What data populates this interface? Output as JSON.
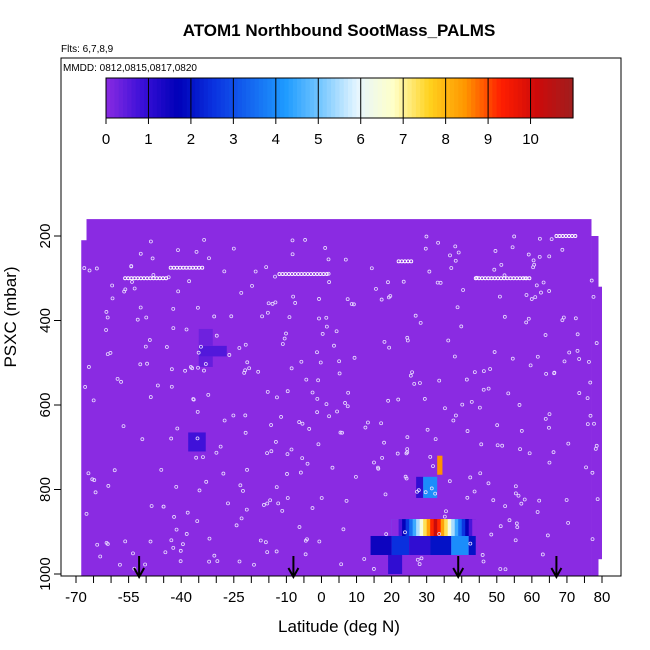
{
  "chart_data": {
    "type": "heatmap",
    "title": "ATOM1 Northbound SootMass_PALMS",
    "flights_label": "Flts: 6,7,8,9",
    "dates_label": "MMDD: 0812,0815,0817,0820",
    "xlabel": "Latitude (deg N)",
    "ylabel": "PSXC (mbar)",
    "xlim": [
      -70,
      80
    ],
    "ylim": [
      1000,
      100
    ],
    "x_ticks": [
      -70,
      -55,
      -40,
      -25,
      -10,
      0,
      10,
      20,
      30,
      40,
      50,
      60,
      70,
      80
    ],
    "x_tick_labels": [
      "-70",
      "-55",
      "-40",
      "-25",
      "-10",
      "0",
      "10",
      "20",
      "30",
      "40",
      "50",
      "60",
      "70",
      "80"
    ],
    "y_ticks": [
      200,
      400,
      600,
      800,
      1000
    ],
    "y_tick_labels": [
      "200",
      "400",
      "600",
      "800",
      "1000"
    ],
    "colorbar": {
      "ticks": [
        0,
        1,
        2,
        3,
        4,
        5,
        6,
        7,
        8,
        9,
        10
      ],
      "tick_labels": [
        "0",
        "1",
        "2",
        "3",
        "4",
        "5",
        "6",
        "7",
        "8",
        "9",
        "10"
      ],
      "range": [
        0,
        11
      ],
      "colors": [
        "#8a2be2",
        "#3b10d8",
        "#0000b8",
        "#0a32e0",
        "#1466f0",
        "#1e9bff",
        "#78c8ff",
        "#e6f6ff",
        "#ffffc8",
        "#ffd21e",
        "#ff9600",
        "#ff1e00",
        "#cd0a0a",
        "#a01e1e"
      ]
    },
    "background_color": "#8a2be2",
    "cells": [
      {
        "x0": 20,
        "x1": 25,
        "y0": 870,
        "y1": 910,
        "value": 4.5
      },
      {
        "x0": 25,
        "x1": 28,
        "y0": 870,
        "y1": 910,
        "value": 6.5
      },
      {
        "x0": 28,
        "x1": 31,
        "y0": 870,
        "y1": 910,
        "value": 8.5
      },
      {
        "x0": 31,
        "x1": 34,
        "y0": 870,
        "y1": 910,
        "value": 10.0
      },
      {
        "x0": 34,
        "x1": 37,
        "y0": 870,
        "y1": 910,
        "value": 7.5
      },
      {
        "x0": 37,
        "x1": 41,
        "y0": 870,
        "y1": 910,
        "value": 3.5
      },
      {
        "x0": 41,
        "x1": 44,
        "y0": 870,
        "y1": 910,
        "value": 1.5
      },
      {
        "x0": 14,
        "x1": 20,
        "y0": 910,
        "y1": 955,
        "value": 1.5
      },
      {
        "x0": 20,
        "x1": 25,
        "y0": 910,
        "y1": 955,
        "value": 2.5
      },
      {
        "x0": 25,
        "x1": 31,
        "y0": 910,
        "y1": 955,
        "value": 1.0
      },
      {
        "x0": 31,
        "x1": 37,
        "y0": 910,
        "y1": 955,
        "value": 2.0
      },
      {
        "x0": 37,
        "x1": 42,
        "y0": 910,
        "y1": 955,
        "value": 4.0
      },
      {
        "x0": 42,
        "x1": 44,
        "y0": 910,
        "y1": 955,
        "value": 2.0
      },
      {
        "x0": 19,
        "x1": 23,
        "y0": 955,
        "y1": 1000,
        "value": 1.0
      },
      {
        "x0": 27,
        "x1": 29,
        "y0": 770,
        "y1": 820,
        "value": 1.0
      },
      {
        "x0": 29,
        "x1": 33,
        "y0": 770,
        "y1": 820,
        "value": 4.0
      },
      {
        "x0": 33,
        "x1": 34.5,
        "y0": 720,
        "y1": 765,
        "value": 8.5
      },
      {
        "x0": -38,
        "x1": -33,
        "y0": 665,
        "y1": 710,
        "value": 0.8
      },
      {
        "x0": -35,
        "x1": -31,
        "y0": 485,
        "y1": 510,
        "value": 0.4
      },
      {
        "x0": -35,
        "x1": -27,
        "y0": 460,
        "y1": 485,
        "value": 0.6
      },
      {
        "x0": -35,
        "x1": -31,
        "y0": 420,
        "y1": 460,
        "value": 0.3
      }
    ],
    "flight_markers_lat": [
      -52,
      -8,
      39,
      67
    ]
  }
}
